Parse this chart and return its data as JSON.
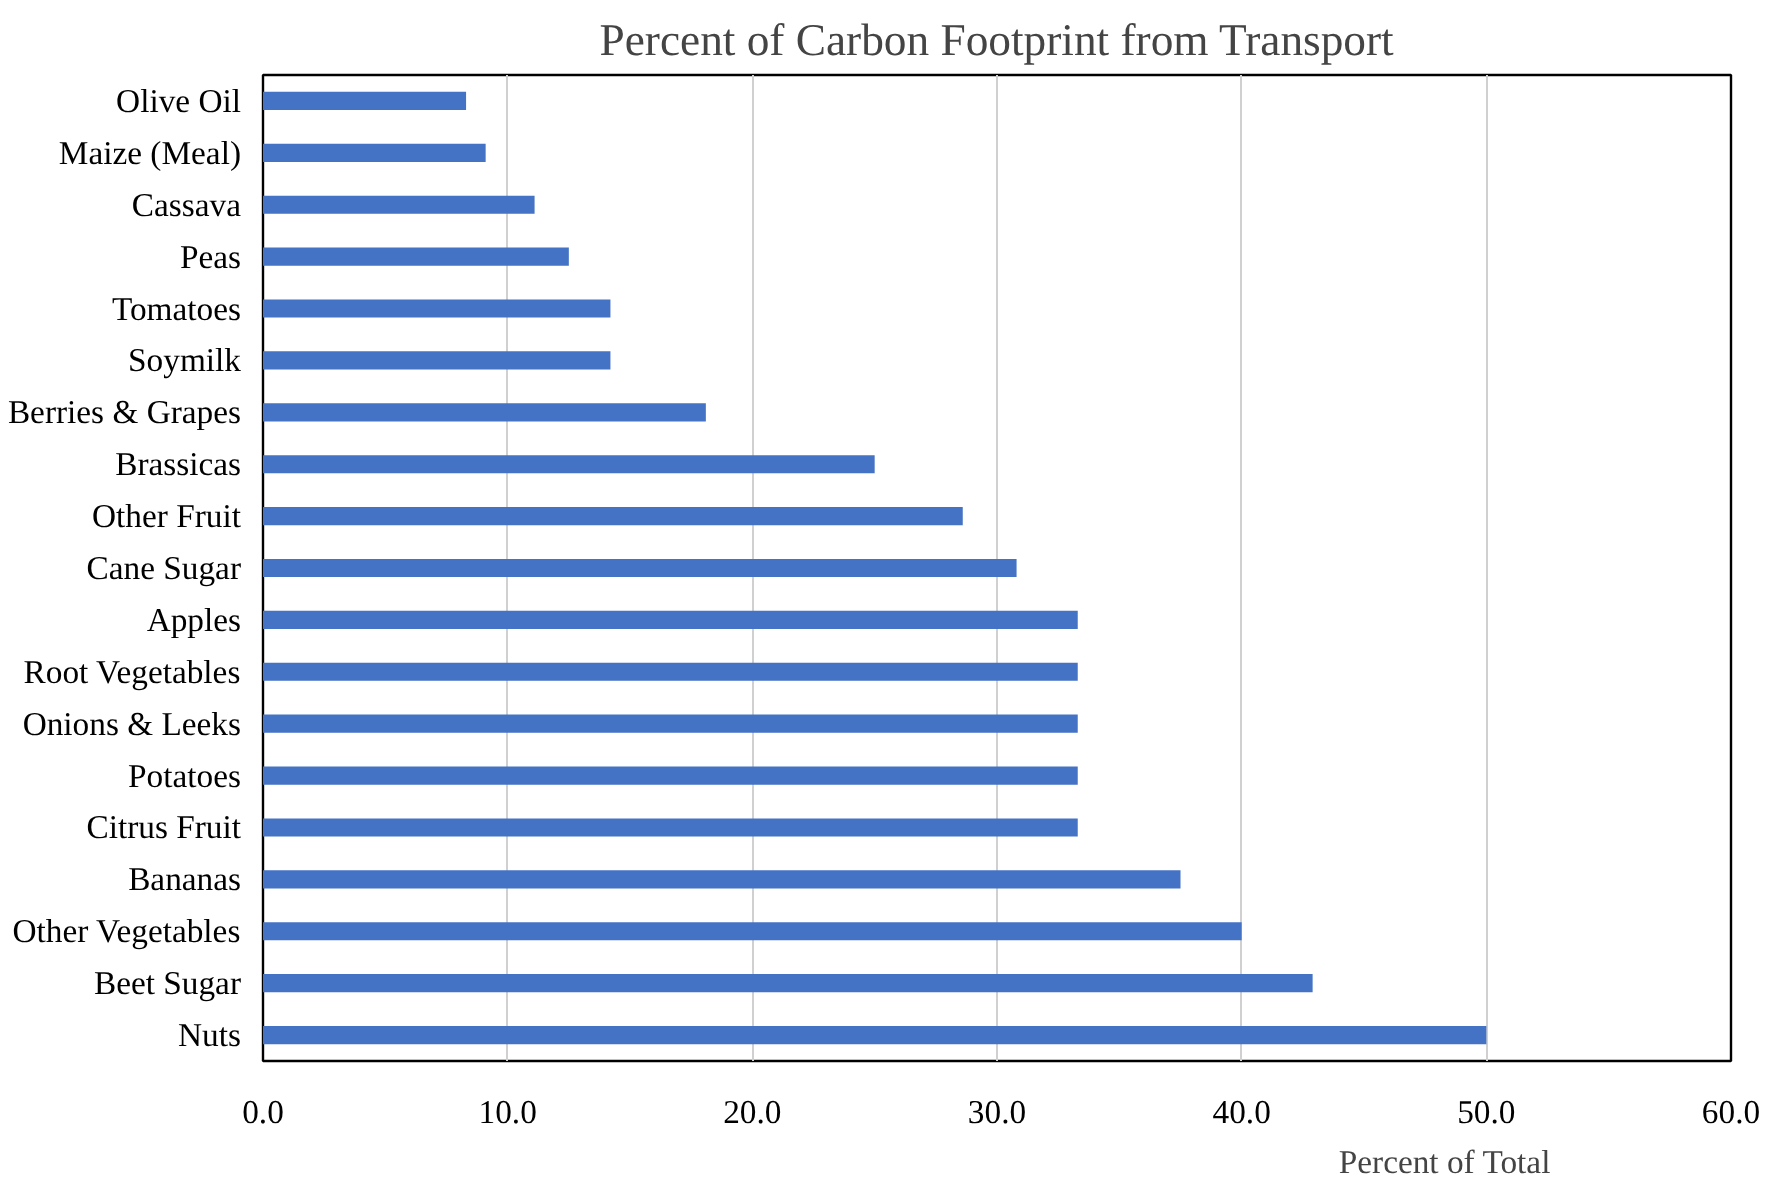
{
  "chart_data": {
    "type": "bar",
    "orientation": "horizontal",
    "title": "Percent of Carbon Footprint from Transport",
    "xlabel": "Percent of Total",
    "categories": [
      "Olive Oil",
      "Maize (Meal)",
      "Cassava",
      "Peas",
      "Tomatoes",
      "Soymilk",
      "Berries & Grapes",
      "Brassicas",
      "Other Fruit",
      "Cane Sugar",
      "Apples",
      "Root Vegetables",
      "Onions & Leeks",
      "Potatoes",
      "Citrus Fruit",
      "Bananas",
      "Other Vegetables",
      "Beet Sugar",
      "Nuts"
    ],
    "values": [
      8.3,
      9.1,
      11.1,
      12.5,
      14.2,
      14.2,
      18.1,
      25.0,
      28.6,
      30.8,
      33.3,
      33.3,
      33.3,
      33.3,
      33.3,
      37.5,
      40.0,
      42.9,
      50.0
    ],
    "color": "#4472c4",
    "xlim": [
      0,
      60
    ],
    "xticks": [
      {
        "value": 0,
        "label": "0.0"
      },
      {
        "value": 10,
        "label": "10.0"
      },
      {
        "value": 20,
        "label": "20.0"
      },
      {
        "value": 30,
        "label": "30.0"
      },
      {
        "value": 40,
        "label": "40.0"
      },
      {
        "value": 50,
        "label": "50.0"
      },
      {
        "value": 60,
        "label": "60.0"
      }
    ],
    "grid": "x"
  }
}
